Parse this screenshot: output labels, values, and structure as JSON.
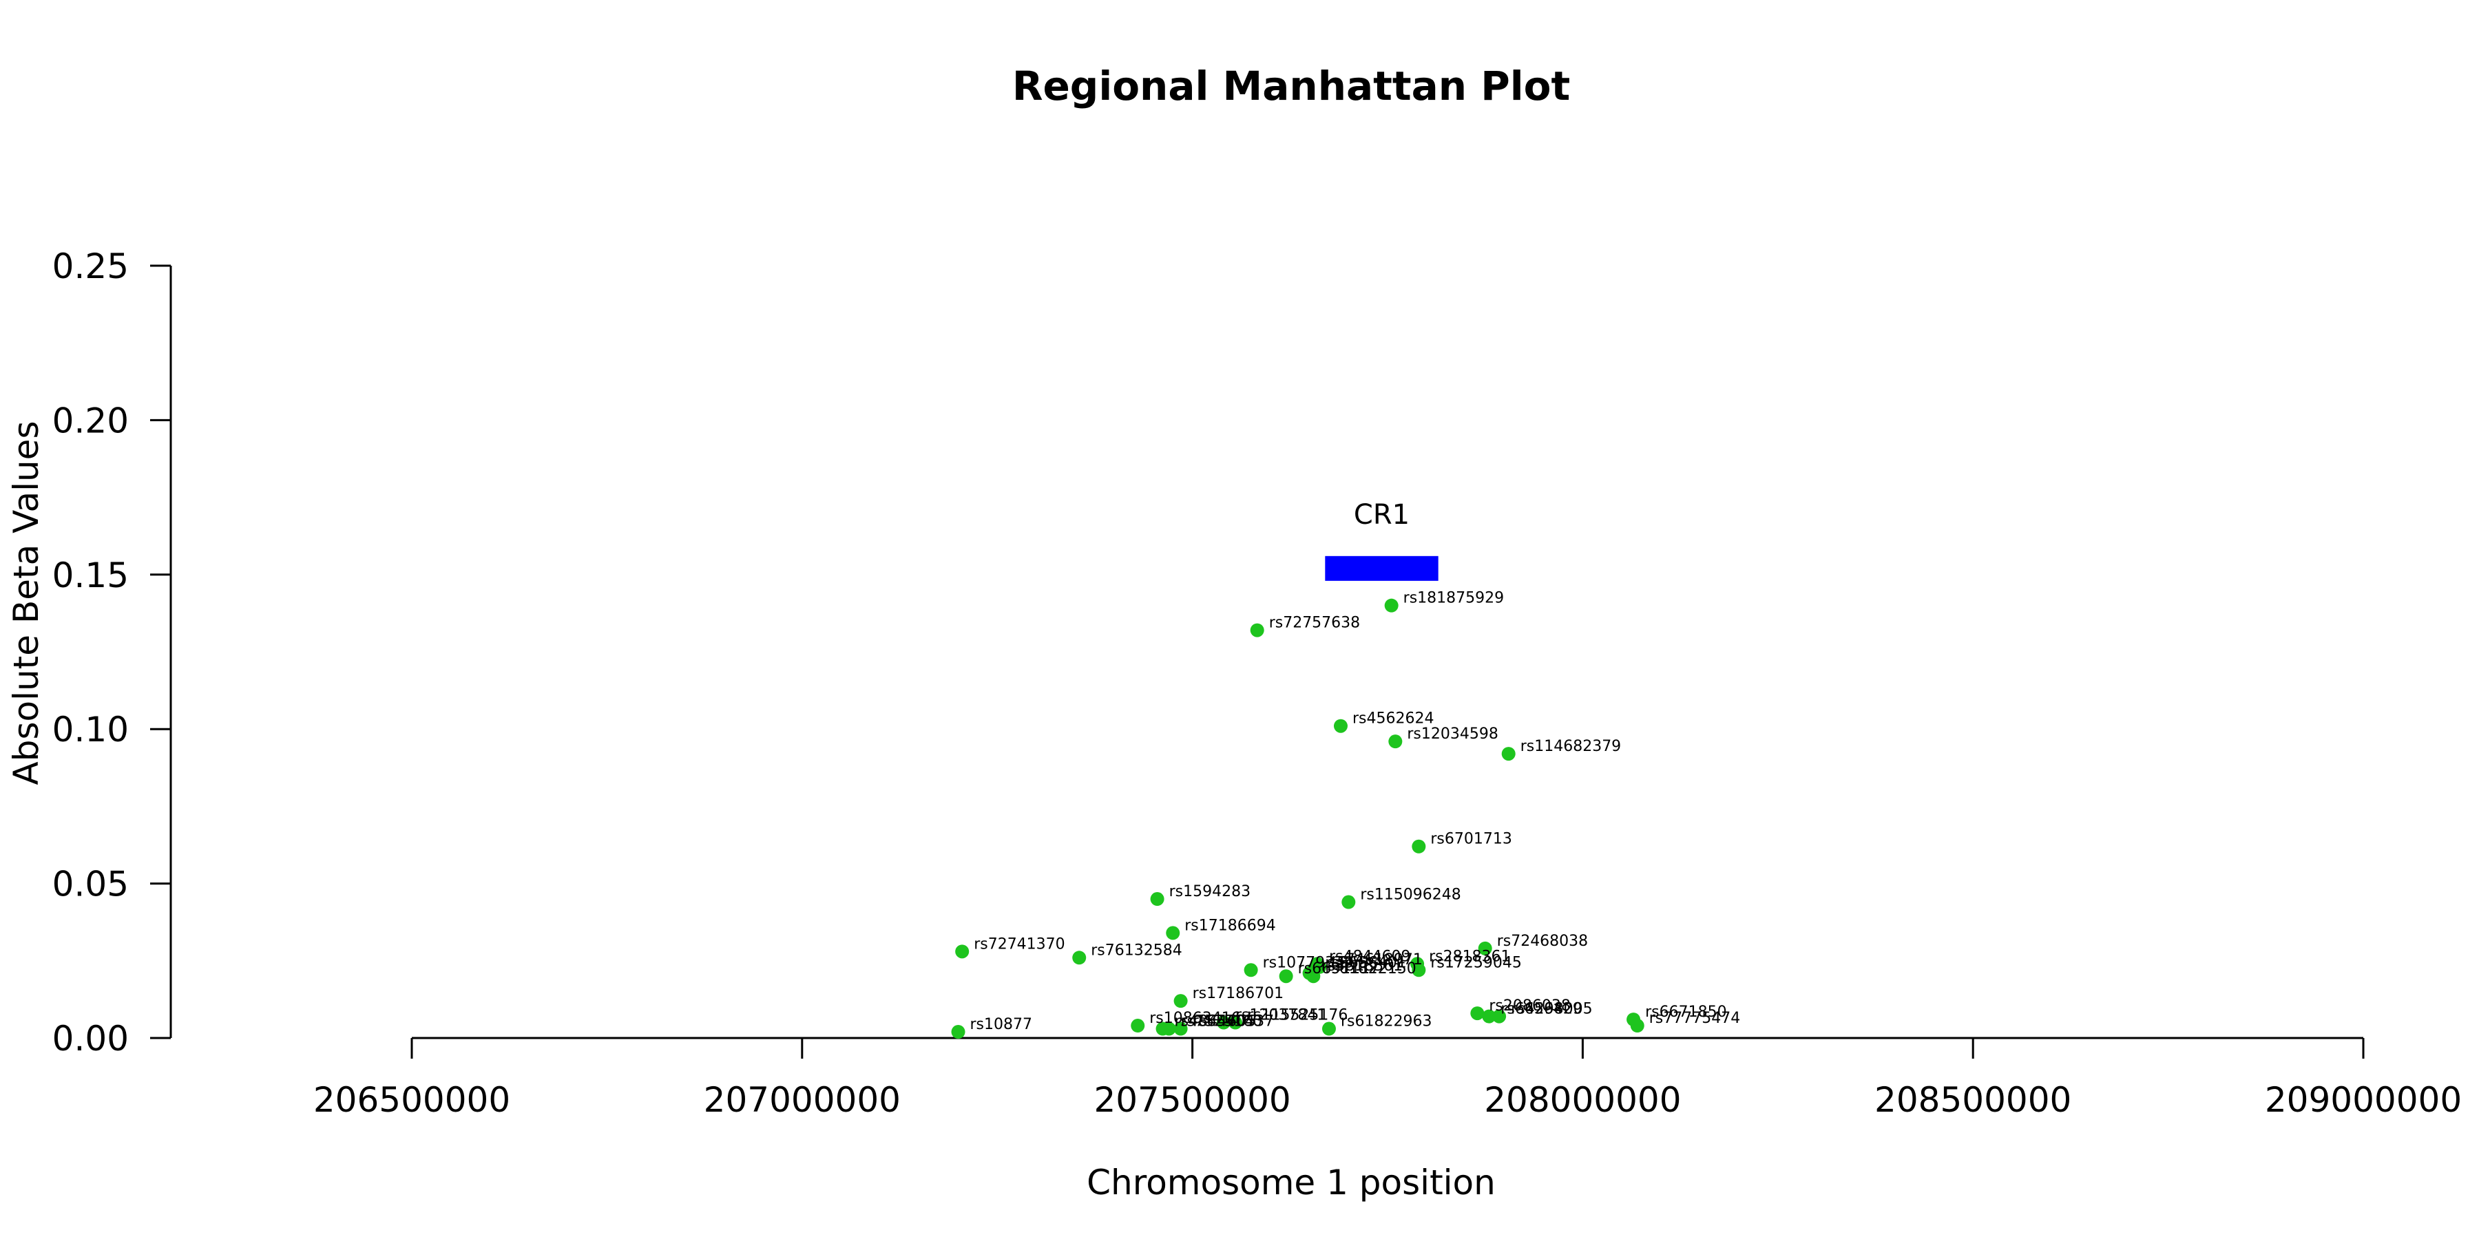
{
  "chart_data": {
    "type": "scatter",
    "title": "Regional Manhattan Plot",
    "xlabel": "Chromosome 1 position",
    "ylabel": "Absolute Beta Values",
    "xlim": [
      206500000,
      209000000
    ],
    "ylim": [
      0,
      0.25
    ],
    "x_ticks": [
      206500000,
      207000000,
      207500000,
      208000000,
      208500000,
      209000000
    ],
    "x_tick_labels": [
      "206500000",
      "207000000",
      "207500000",
      "208000000",
      "208500000",
      "209000000"
    ],
    "y_ticks": [
      0,
      0.05,
      0.1,
      0.15,
      0.2,
      0.25
    ],
    "y_tick_labels": [
      "0.00",
      "0.05",
      "0.10",
      "0.15",
      "0.20",
      "0.25"
    ],
    "grid": false,
    "point_color": "#1ec41e",
    "gene": {
      "name": "CR1",
      "start": 207670000,
      "end": 207815000,
      "y": 0.152,
      "color": "#0000ff"
    },
    "points": [
      {
        "label": "rs181875929",
        "x": 207755000,
        "y": 0.14
      },
      {
        "label": "rs72757638",
        "x": 207583000,
        "y": 0.132
      },
      {
        "label": "rs4562624",
        "x": 207690000,
        "y": 0.101
      },
      {
        "label": "rs12034598",
        "x": 207760000,
        "y": 0.096
      },
      {
        "label": "rs114682379",
        "x": 207905000,
        "y": 0.092
      },
      {
        "label": "rs6701713",
        "x": 207790000,
        "y": 0.062
      },
      {
        "label": "rs1594283",
        "x": 207455000,
        "y": 0.045
      },
      {
        "label": "rs115096248",
        "x": 207700000,
        "y": 0.044
      },
      {
        "label": "rs17186694",
        "x": 207475000,
        "y": 0.034
      },
      {
        "label": "rs72741370",
        "x": 207205000,
        "y": 0.028
      },
      {
        "label": "rs76132584",
        "x": 207355000,
        "y": 0.026
      },
      {
        "label": "rs72468038",
        "x": 207875000,
        "y": 0.029
      },
      {
        "label": "rs10779339",
        "x": 207575000,
        "y": 0.022
      },
      {
        "label": "rs2818361",
        "x": 207788000,
        "y": 0.024
      },
      {
        "label": "rs17259045",
        "x": 207790000,
        "y": 0.022
      },
      {
        "label": "rs74618971",
        "x": 207663000,
        "y": 0.023
      },
      {
        "label": "rs4844609",
        "x": 207660000,
        "y": 0.024
      },
      {
        "label": "rs6656401",
        "x": 207655000,
        "y": 0.022
      },
      {
        "label": "rs6691117",
        "x": 207620000,
        "y": 0.02
      },
      {
        "label": "rs3818361",
        "x": 207650000,
        "y": 0.021
      },
      {
        "label": "rs61822150",
        "x": 207655000,
        "y": 0.02
      },
      {
        "label": "rs17186701",
        "x": 207485000,
        "y": 0.012
      },
      {
        "label": "rs2086038",
        "x": 207865000,
        "y": 0.008
      },
      {
        "label": "rs4298005",
        "x": 207893000,
        "y": 0.007
      },
      {
        "label": "rs6656429",
        "x": 207880000,
        "y": 0.007
      },
      {
        "label": "rs6671850",
        "x": 208065000,
        "y": 0.006
      },
      {
        "label": "rs77775474",
        "x": 208070000,
        "y": 0.004
      },
      {
        "label": "rs10863416",
        "x": 207430000,
        "y": 0.004
      },
      {
        "label": "rs115525176",
        "x": 207555000,
        "y": 0.005
      },
      {
        "label": "rs12037841",
        "x": 207540000,
        "y": 0.005
      },
      {
        "label": "rs61822963",
        "x": 207675000,
        "y": 0.003
      },
      {
        "label": "rs4844605",
        "x": 207462000,
        "y": 0.003
      },
      {
        "label": "rs7525160",
        "x": 207470000,
        "y": 0.003
      },
      {
        "label": "rs6540437",
        "x": 207485000,
        "y": 0.003
      },
      {
        "label": "rs10877",
        "x": 207200000,
        "y": 0.002
      }
    ]
  }
}
